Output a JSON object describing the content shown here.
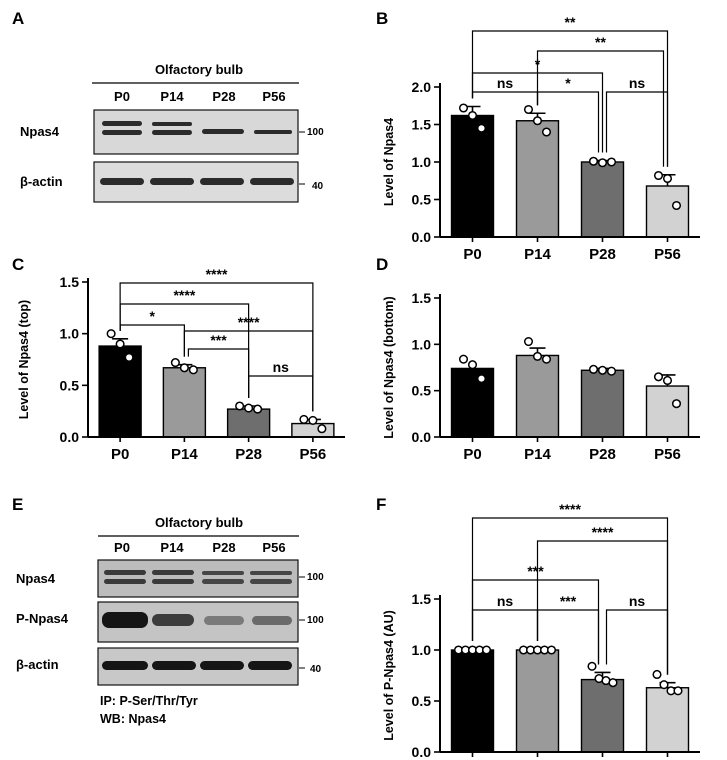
{
  "colors": {
    "P0": "#000000",
    "P14": "#9a9a9a",
    "P28": "#6e6e6e",
    "P56": "#d2d2d2"
  },
  "panel_labels": {
    "A": "A",
    "B": "B",
    "C": "C",
    "D": "D",
    "E": "E",
    "F": "F"
  },
  "blots": [
    {
      "panel": "A",
      "title": "Olfactory bulb",
      "lanes": [
        "P0",
        "P14",
        "P28",
        "P56"
      ],
      "rows": [
        {
          "label": "Npas4",
          "mw": "100"
        },
        {
          "label": "β-actin",
          "mw": "40"
        }
      ],
      "notes": []
    },
    {
      "panel": "E",
      "title": "Olfactory bulb",
      "lanes": [
        "P0",
        "P14",
        "P28",
        "P56"
      ],
      "rows": [
        {
          "label": "Npas4",
          "mw": "100"
        },
        {
          "label": "P-Npas4",
          "mw": "100"
        },
        {
          "label": "β-actin",
          "mw": "40"
        }
      ],
      "notes": [
        "IP: P-Ser/Thr/Tyr",
        "WB: Npas4"
      ]
    }
  ],
  "chart_data": [
    {
      "panel": "B",
      "type": "bar",
      "categories": [
        "P0",
        "P14",
        "P28",
        "P56"
      ],
      "values": [
        1.62,
        1.55,
        1.0,
        0.68
      ],
      "errors": [
        0.12,
        0.1,
        0.02,
        0.15
      ],
      "points": [
        [
          1.72,
          1.62,
          1.45
        ],
        [
          1.7,
          1.55,
          1.4
        ],
        [
          1.01,
          0.99,
          1.0
        ],
        [
          0.82,
          0.78,
          0.42
        ]
      ],
      "ylabel": "Level of Npas4",
      "ylim": [
        0,
        2.0
      ],
      "yticks": [
        "0.0",
        "0.5",
        "1.0",
        "1.5",
        "2.0"
      ],
      "comparisons": [
        {
          "from": "P0",
          "to": "P56",
          "label": "**"
        },
        {
          "from": "P14",
          "to": "P56",
          "label": "**"
        },
        {
          "from": "P0",
          "to": "P28",
          "label": "*"
        },
        {
          "from": "P14",
          "to": "P28",
          "label": "*"
        },
        {
          "from": "P0",
          "to": "P14",
          "label": "ns"
        },
        {
          "from": "P28",
          "to": "P56",
          "label": "ns"
        }
      ]
    },
    {
      "panel": "C",
      "type": "bar",
      "categories": [
        "P0",
        "P14",
        "P28",
        "P56"
      ],
      "values": [
        0.88,
        0.67,
        0.27,
        0.13
      ],
      "errors": [
        0.07,
        0.03,
        0.03,
        0.04
      ],
      "points": [
        [
          1.0,
          0.9,
          0.77
        ],
        [
          0.72,
          0.67,
          0.65
        ],
        [
          0.3,
          0.28,
          0.27
        ],
        [
          0.17,
          0.16,
          0.08
        ]
      ],
      "ylabel": "Level of Npas4 (top)",
      "ylim": [
        0,
        1.5
      ],
      "yticks": [
        "0.0",
        "0.5",
        "1.0",
        "1.5"
      ],
      "comparisons": [
        {
          "from": "P0",
          "to": "P56",
          "label": "****"
        },
        {
          "from": "P0",
          "to": "P28",
          "label": "****"
        },
        {
          "from": "P14",
          "to": "P56",
          "label": "****"
        },
        {
          "from": "P0",
          "to": "P14",
          "label": "*"
        },
        {
          "from": "P14",
          "to": "P28",
          "label": "***"
        },
        {
          "from": "P28",
          "to": "P56",
          "label": "ns"
        }
      ]
    },
    {
      "panel": "D",
      "type": "bar",
      "categories": [
        "P0",
        "P14",
        "P28",
        "P56"
      ],
      "values": [
        0.74,
        0.88,
        0.72,
        0.55
      ],
      "errors": [
        0.0,
        0.08,
        0.02,
        0.12
      ],
      "points": [
        [
          0.84,
          0.78,
          0.63
        ],
        [
          1.03,
          0.87,
          0.84
        ],
        [
          0.73,
          0.72,
          0.71
        ],
        [
          0.65,
          0.61,
          0.36
        ]
      ],
      "ylabel": "Level of Npas4 (bottom)",
      "ylim": [
        0,
        1.5
      ],
      "yticks": [
        "0.0",
        "0.5",
        "1.0",
        "1.5"
      ],
      "comparisons": []
    },
    {
      "panel": "F",
      "type": "bar",
      "categories": [
        "P0",
        "P14",
        "P28",
        "P56"
      ],
      "values": [
        1.0,
        1.0,
        0.71,
        0.63
      ],
      "errors": [
        0.01,
        0.01,
        0.07,
        0.05
      ],
      "points": [
        [
          1.0,
          1.0,
          1.0,
          1.0,
          1.0
        ],
        [
          1.0,
          1.0,
          1.0,
          1.0,
          1.0
        ],
        [
          0.84,
          0.72,
          0.7,
          0.68
        ],
        [
          0.76,
          0.66,
          0.6,
          0.6
        ]
      ],
      "ylabel": "Level of P-Npas4 (AU)",
      "ylim": [
        0,
        1.5
      ],
      "yticks": [
        "0.0",
        "0.5",
        "1.0",
        "1.5"
      ],
      "comparisons": [
        {
          "from": "P0",
          "to": "P56",
          "label": "****"
        },
        {
          "from": "P14",
          "to": "P56",
          "label": "****"
        },
        {
          "from": "P0",
          "to": "P28",
          "label": "***"
        },
        {
          "from": "P14",
          "to": "P28",
          "label": "***"
        },
        {
          "from": "P0",
          "to": "P14",
          "label": "ns"
        },
        {
          "from": "P28",
          "to": "P56",
          "label": "ns"
        }
      ]
    }
  ]
}
